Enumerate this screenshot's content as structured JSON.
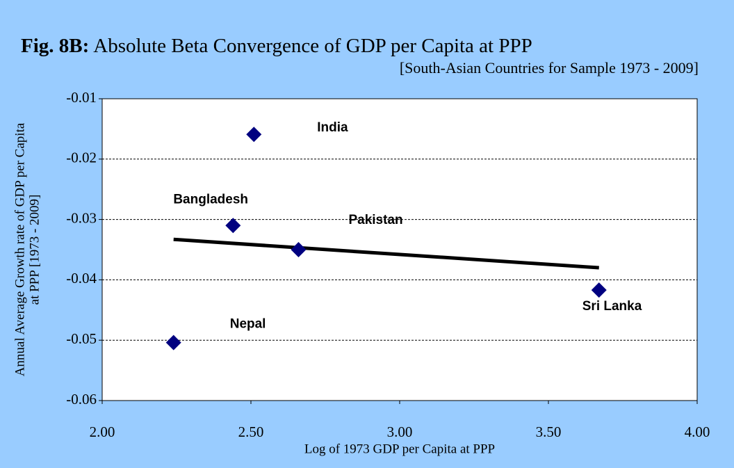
{
  "chart_data": {
    "type": "scatter",
    "title_prefix": "Fig. 8B:",
    "title": "Absolute Beta Convergence of GDP per Capita at PPP",
    "subtitle": "[South-Asian Countries for Sample 1973 - 2009]",
    "ylabel": [
      "Annual Average Growth rate of GDP per Capita",
      "at PPP [1973 - 2009]"
    ],
    "xlabel": "Log of 1973 GDP per Capita at PPP",
    "xlim": [
      2,
      4
    ],
    "xticks": [
      {
        "value": 2,
        "label": "2.00"
      },
      {
        "value": 2.5,
        "label": "2.50"
      },
      {
        "value": 3,
        "label": "3.00"
      },
      {
        "value": 3.5,
        "label": "3.50"
      },
      {
        "value": 4,
        "label": "4.00"
      }
    ],
    "ylim": [
      -0.06,
      -0.01
    ],
    "yticks": [
      -0.01,
      -0.02,
      -0.03,
      -0.04,
      -0.05,
      -0.06
    ],
    "grid": true,
    "series": [
      {
        "color": "#000080",
        "labels": [
          "India",
          "Bangladesh",
          "Pakistan",
          "Sri Lanka",
          "Nepal"
        ],
        "x": [
          2.51,
          2.44,
          2.66,
          3.67,
          2.24
        ],
        "values": [
          -0.0159,
          -0.031,
          -0.035,
          -0.0417,
          -0.0504
        ]
      }
    ],
    "trendline": {
      "color": "#000000",
      "x": [
        2.24,
        3.67
      ],
      "values": [
        -0.0333,
        -0.038
      ]
    }
  }
}
